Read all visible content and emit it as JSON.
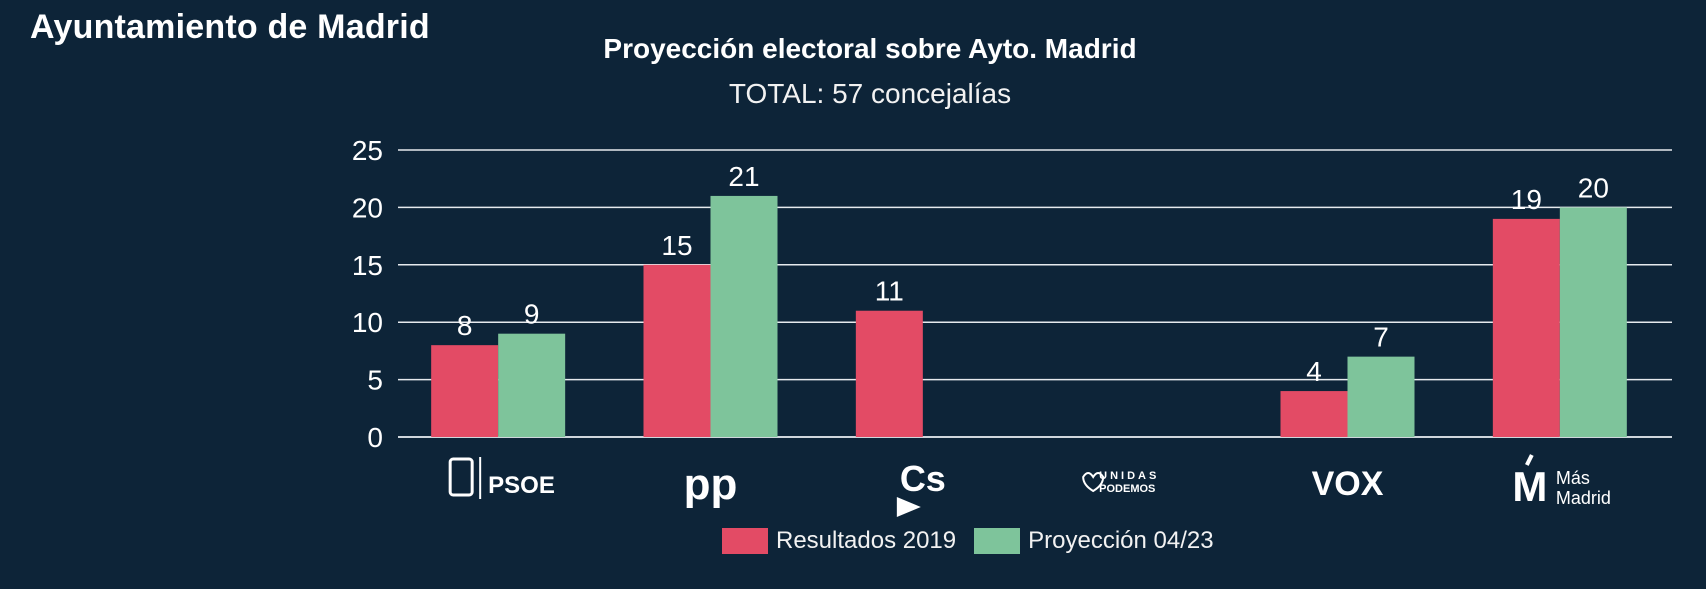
{
  "page": {
    "heading": "Ayuntamiento de Madrid"
  },
  "chart_data": {
    "type": "bar",
    "title": "Proyección electoral sobre Ayto. Madrid",
    "subtitle": "TOTAL: 57 concejalías",
    "xlabel": "",
    "ylabel": "",
    "ylim": [
      0,
      25
    ],
    "yticks": [
      0,
      5,
      10,
      15,
      20,
      25
    ],
    "grid": true,
    "legend_position": "bottom",
    "categories": [
      "PSOE",
      "PP",
      "Cs",
      "Unidas Podemos",
      "VOX",
      "Más Madrid"
    ],
    "category_logos": [
      {
        "icon": "psoe-logo",
        "text": "PSOE"
      },
      {
        "icon": "pp-logo",
        "text": "pp"
      },
      {
        "icon": "cs-logo",
        "text": "Cs"
      },
      {
        "icon": "unidas-podemos-logo",
        "text": "UNIDAS PODEMOS"
      },
      {
        "icon": "vox-logo",
        "text": "VOX"
      },
      {
        "icon": "mas-madrid-logo",
        "text": "Más Madrid"
      }
    ],
    "series": [
      {
        "name": "Resultados 2019",
        "color": "#e34b65",
        "values": [
          8,
          15,
          11,
          null,
          4,
          19
        ]
      },
      {
        "name": "Proyección 04/23",
        "color": "#7ec49b",
        "values": [
          9,
          21,
          null,
          null,
          7,
          20
        ]
      }
    ]
  }
}
